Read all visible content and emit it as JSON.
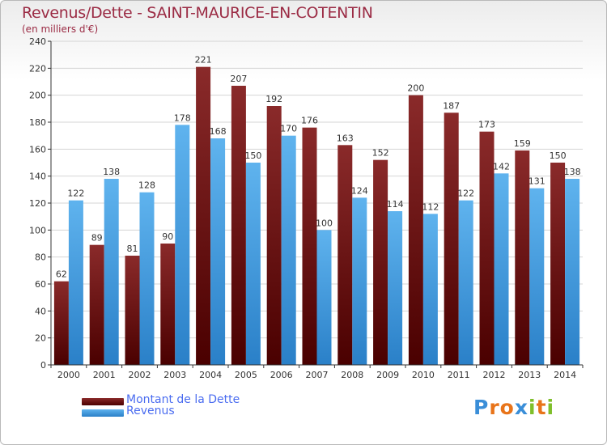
{
  "title": "Revenus/Dette - SAINT-MAURICE-EN-COTENTIN",
  "subtitle": "(en milliers d'€)",
  "logo": "Proxiti",
  "colors": {
    "dette": "#6e1414",
    "revenus": "#3c9ee0",
    "axis": "#333333",
    "grid": "#d4d4d4",
    "title": "#9b2b44",
    "legend_text": "#4a6cf0"
  },
  "chart_data": {
    "type": "bar",
    "categories": [
      "2000",
      "2001",
      "2002",
      "2003",
      "2004",
      "2005",
      "2006",
      "2007",
      "2008",
      "2009",
      "2010",
      "2011",
      "2012",
      "2013",
      "2014"
    ],
    "series": [
      {
        "name": "Montant de la Dette",
        "values": [
          62,
          89,
          81,
          90,
          221,
          207,
          192,
          176,
          163,
          152,
          200,
          187,
          173,
          159,
          150
        ]
      },
      {
        "name": "Revenus",
        "values": [
          122,
          138,
          128,
          178,
          168,
          150,
          170,
          100,
          124,
          114,
          112,
          122,
          142,
          131,
          138
        ]
      }
    ],
    "ylim": [
      0,
      240
    ],
    "yticks": [
      0,
      20,
      40,
      60,
      80,
      100,
      120,
      140,
      160,
      180,
      200,
      220,
      240
    ],
    "grid": true,
    "legend": "bottom-left",
    "xlabel": "",
    "ylabel": ""
  }
}
